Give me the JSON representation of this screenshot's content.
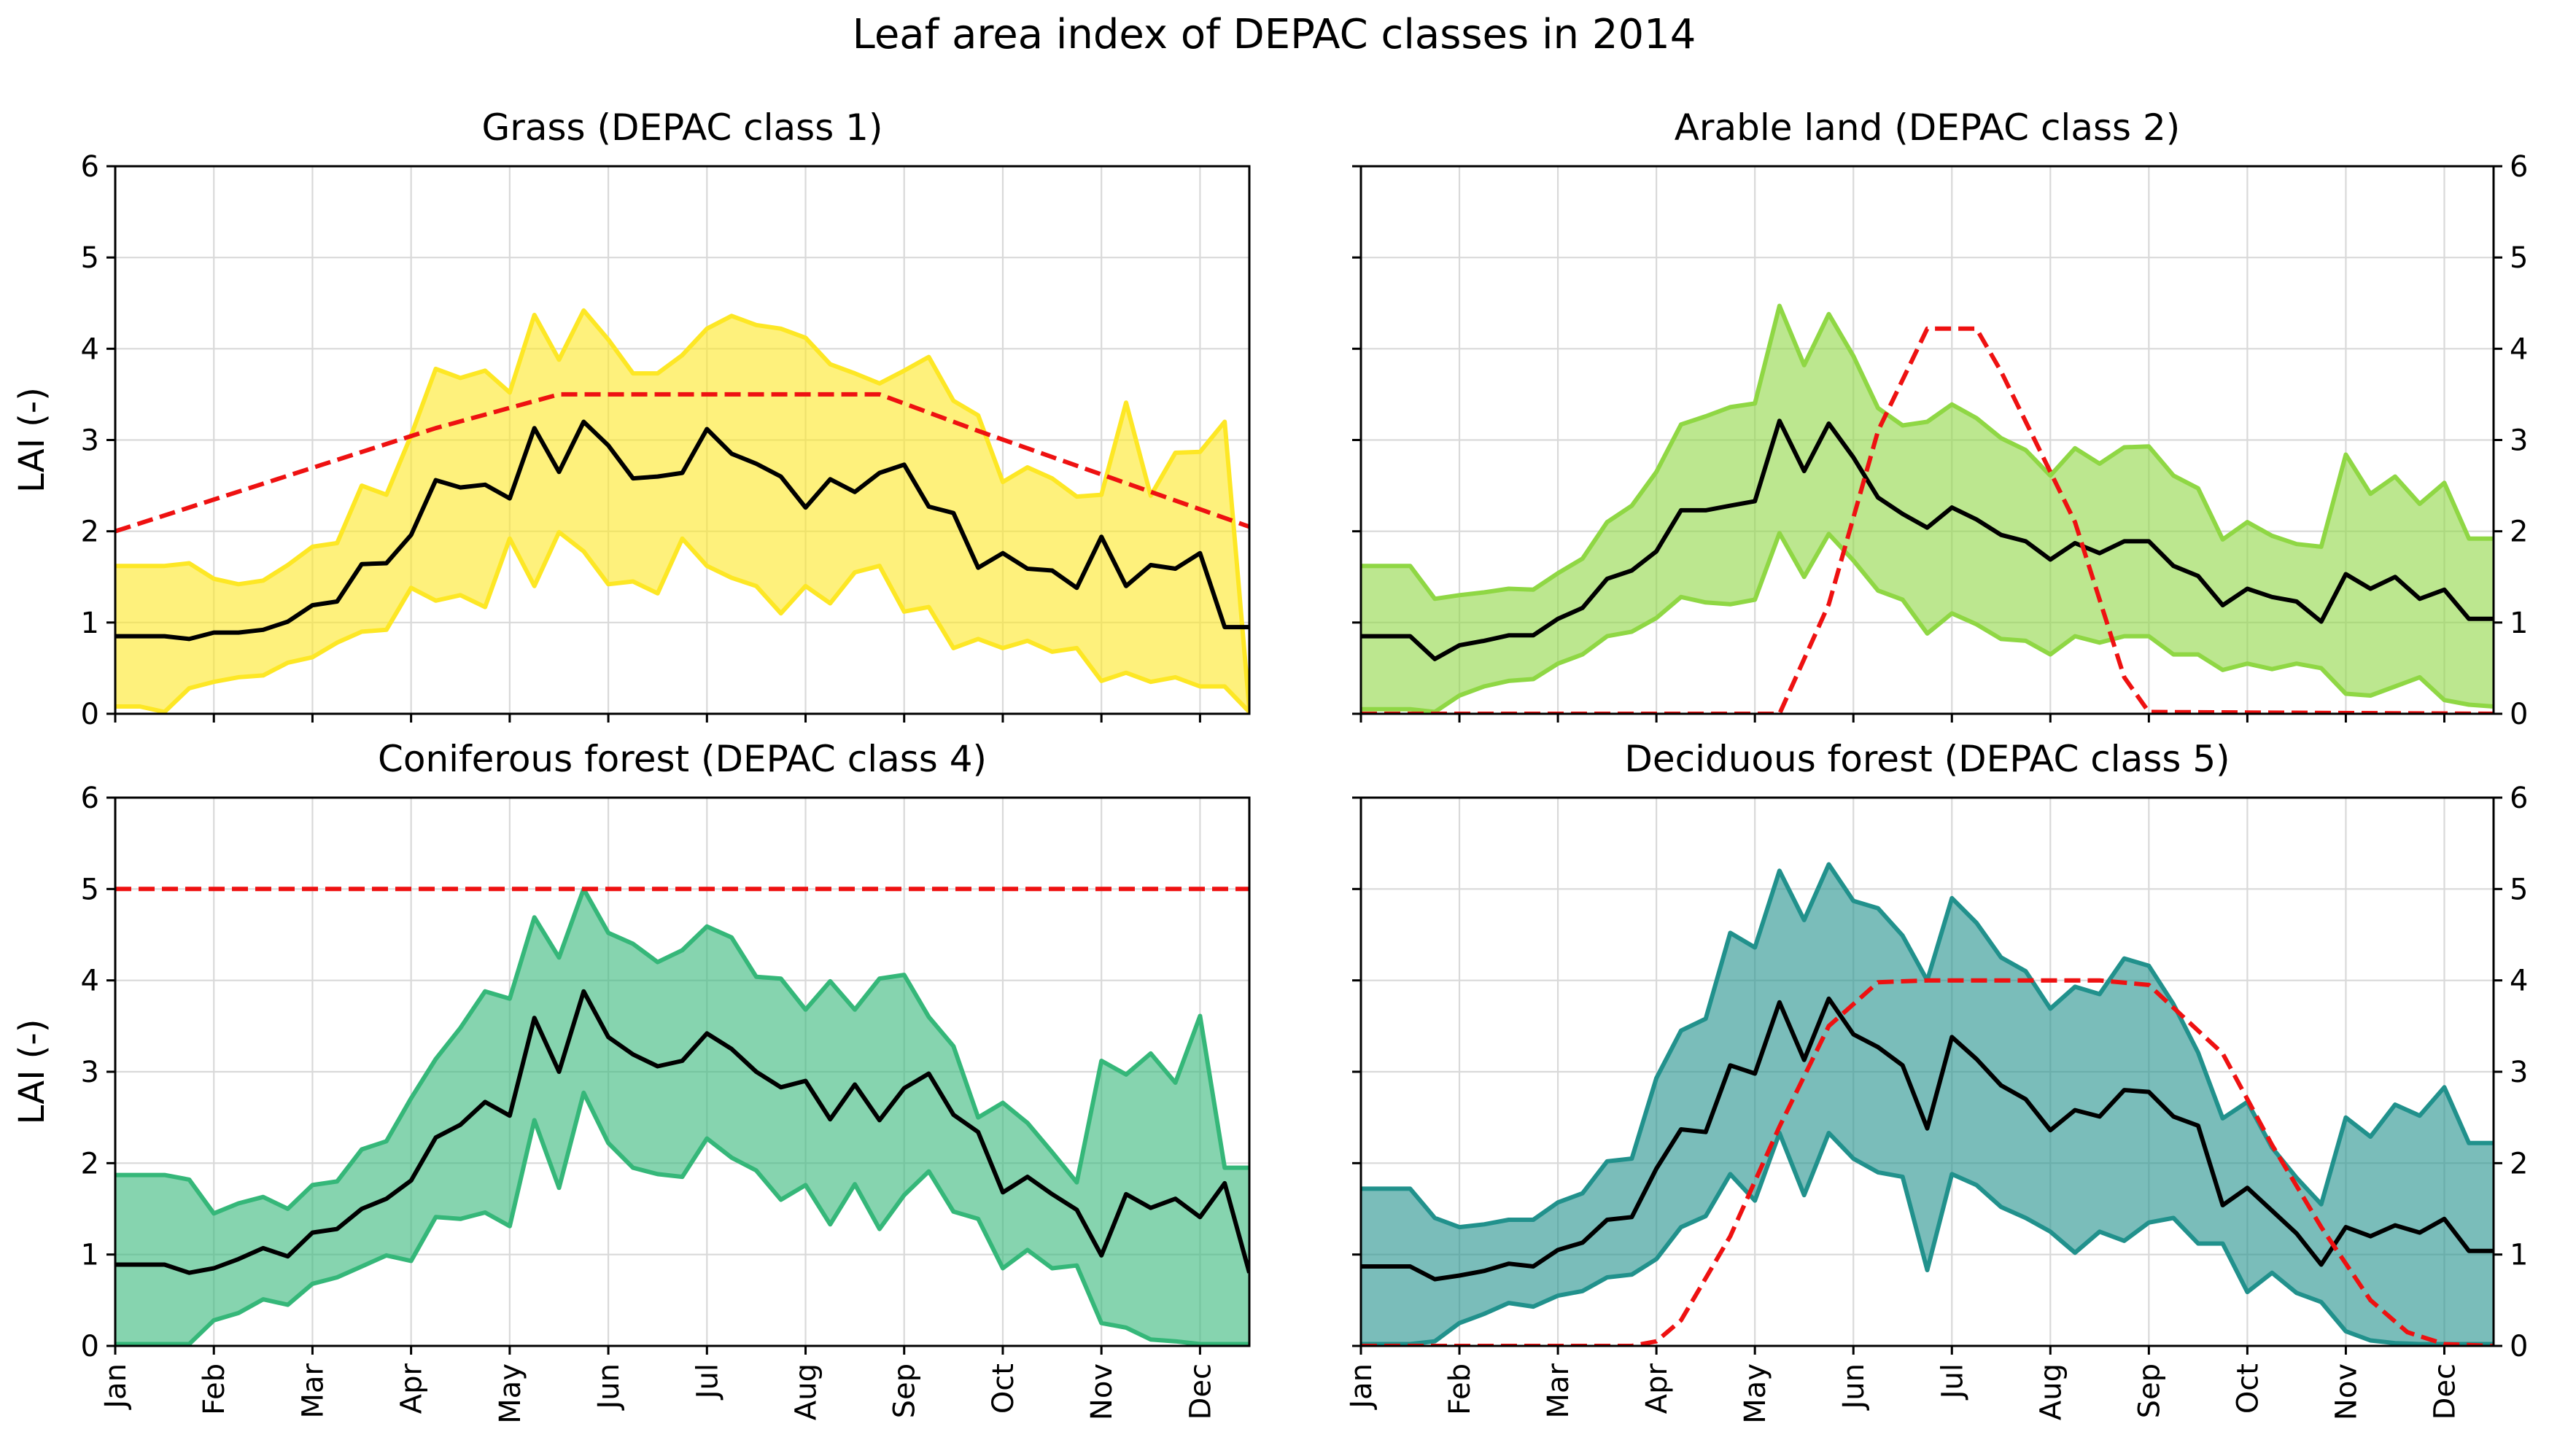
{
  "figure_title": "Leaf area index of DEPAC classes in 2014",
  "chart_data": [
    {
      "type": "line",
      "title": "Grass (DEPAC class 1)",
      "ylabel": "LAI (-)",
      "ylim": [
        0,
        6
      ],
      "yticks": [
        0,
        1,
        2,
        3,
        4,
        5,
        6
      ],
      "x_range": [
        1,
        47
      ],
      "month_ticks": [
        "Jan",
        "Feb",
        "Mar",
        "Apr",
        "May",
        "Jun",
        "Jul",
        "Aug",
        "Sep",
        "Oct",
        "Nov",
        "Dec"
      ],
      "month_tick_positions": [
        1,
        5,
        9,
        13,
        17,
        21,
        25,
        29,
        33,
        37,
        41,
        45
      ],
      "grid": true,
      "colors": {
        "fill": "#fde725",
        "edge": "#fde725",
        "mean": "#000000",
        "model": "#ee1111"
      },
      "fill_alpha": 0.6,
      "series": [
        {
          "name": "upper",
          "values": [
            1.62,
            1.62,
            1.62,
            1.65,
            1.48,
            1.42,
            1.46,
            1.63,
            1.83,
            1.87,
            2.5,
            2.4,
            3.05,
            3.78,
            3.68,
            3.76,
            3.52,
            4.37,
            3.88,
            4.42,
            4.1,
            3.73,
            3.73,
            3.93,
            4.22,
            4.36,
            4.26,
            4.22,
            4.12,
            3.83,
            3.73,
            3.62,
            3.76,
            3.91,
            3.43,
            3.27,
            2.54,
            2.7,
            2.58,
            2.38,
            2.4,
            3.41,
            2.39,
            2.86,
            2.87,
            3.2,
            0.05
          ]
        },
        {
          "name": "lower",
          "values": [
            0.08,
            0.08,
            0.02,
            0.28,
            0.35,
            0.4,
            0.42,
            0.56,
            0.62,
            0.78,
            0.9,
            0.92,
            1.38,
            1.24,
            1.3,
            1.17,
            1.92,
            1.4,
            1.99,
            1.78,
            1.42,
            1.45,
            1.32,
            1.92,
            1.62,
            1.49,
            1.4,
            1.1,
            1.4,
            1.21,
            1.55,
            1.62,
            1.12,
            1.17,
            0.72,
            0.82,
            0.72,
            0.8,
            0.68,
            0.72,
            0.36,
            0.45,
            0.35,
            0.4,
            0.3,
            0.3,
            0.02
          ]
        },
        {
          "name": "mean",
          "values": [
            0.85,
            0.85,
            0.85,
            0.82,
            0.89,
            0.89,
            0.92,
            1.01,
            1.19,
            1.23,
            1.64,
            1.65,
            1.96,
            2.56,
            2.48,
            2.51,
            2.36,
            3.13,
            2.65,
            3.2,
            2.94,
            2.58,
            2.6,
            2.64,
            3.12,
            2.85,
            2.74,
            2.6,
            2.26,
            2.57,
            2.43,
            2.64,
            2.73,
            2.27,
            2.2,
            1.6,
            1.76,
            1.59,
            1.57,
            1.38,
            1.94,
            1.4,
            1.63,
            1.59,
            1.76,
            0.95,
            0.95
          ]
        },
        {
          "name": "model",
          "dashed": true,
          "x": [
            1,
            14,
            19,
            32,
            36,
            47
          ],
          "values": [
            2.0,
            3.13,
            3.5,
            3.5,
            3.1,
            2.05
          ]
        }
      ]
    },
    {
      "type": "line",
      "title": "Arable land (DEPAC class 2)",
      "ylabel": "",
      "ylim": [
        0,
        6
      ],
      "yticks": [
        0,
        1,
        2,
        3,
        4,
        5,
        6
      ],
      "x_range": [
        1,
        47
      ],
      "month_ticks": [
        "Jan",
        "Feb",
        "Mar",
        "Apr",
        "May",
        "Jun",
        "Jul",
        "Aug",
        "Sep",
        "Oct",
        "Nov",
        "Dec"
      ],
      "month_tick_positions": [
        1,
        5,
        9,
        13,
        17,
        21,
        25,
        29,
        33,
        37,
        41,
        45
      ],
      "grid": true,
      "colors": {
        "fill": "#8fd744",
        "edge": "#8fd744",
        "mean": "#000000",
        "model": "#ee1111"
      },
      "fill_alpha": 0.6,
      "series": [
        {
          "name": "upper",
          "values": [
            1.62,
            1.62,
            1.62,
            1.26,
            1.3,
            1.33,
            1.37,
            1.36,
            1.54,
            1.7,
            2.1,
            2.28,
            2.65,
            3.17,
            3.26,
            3.36,
            3.4,
            4.47,
            3.82,
            4.38,
            3.92,
            3.35,
            3.16,
            3.2,
            3.39,
            3.24,
            3.02,
            2.89,
            2.61,
            2.91,
            2.74,
            2.92,
            2.93,
            2.61,
            2.47,
            1.91,
            2.1,
            1.95,
            1.86,
            1.83,
            2.84,
            2.41,
            2.6,
            2.3,
            2.53,
            1.92,
            1.92
          ]
        },
        {
          "name": "lower",
          "values": [
            0.05,
            0.05,
            0.05,
            0.02,
            0.2,
            0.3,
            0.36,
            0.38,
            0.55,
            0.65,
            0.85,
            0.9,
            1.05,
            1.28,
            1.22,
            1.2,
            1.25,
            1.98,
            1.5,
            1.97,
            1.68,
            1.35,
            1.25,
            0.88,
            1.1,
            0.98,
            0.82,
            0.8,
            0.65,
            0.85,
            0.78,
            0.85,
            0.85,
            0.65,
            0.65,
            0.48,
            0.55,
            0.49,
            0.55,
            0.5,
            0.22,
            0.2,
            0.3,
            0.4,
            0.15,
            0.1,
            0.08
          ]
        },
        {
          "name": "mean",
          "values": [
            0.85,
            0.85,
            0.85,
            0.6,
            0.75,
            0.8,
            0.86,
            0.86,
            1.04,
            1.16,
            1.48,
            1.57,
            1.78,
            2.23,
            2.23,
            2.28,
            2.33,
            3.21,
            2.66,
            3.18,
            2.81,
            2.37,
            2.19,
            2.04,
            2.26,
            2.13,
            1.96,
            1.89,
            1.69,
            1.87,
            1.76,
            1.89,
            1.89,
            1.62,
            1.51,
            1.19,
            1.37,
            1.28,
            1.23,
            1.01,
            1.53,
            1.37,
            1.5,
            1.26,
            1.36,
            1.04,
            1.04
          ]
        },
        {
          "name": "model",
          "dashed": true,
          "x": [
            1,
            18,
            20,
            22,
            24,
            26,
            27,
            30,
            32,
            33,
            47
          ],
          "values": [
            0.0,
            0.0,
            1.2,
            3.1,
            4.22,
            4.22,
            3.75,
            2.1,
            0.4,
            0.02,
            0.0
          ]
        }
      ]
    },
    {
      "type": "line",
      "title": "Coniferous forest (DEPAC class 4)",
      "ylabel": "LAI (-)",
      "ylim": [
        0,
        6
      ],
      "yticks": [
        0,
        1,
        2,
        3,
        4,
        5,
        6
      ],
      "x_range": [
        1,
        47
      ],
      "month_ticks": [
        "Jan",
        "Feb",
        "Mar",
        "Apr",
        "May",
        "Jun",
        "Jul",
        "Aug",
        "Sep",
        "Oct",
        "Nov",
        "Dec"
      ],
      "month_tick_positions": [
        1,
        5,
        9,
        13,
        17,
        21,
        25,
        29,
        33,
        37,
        41,
        45
      ],
      "grid": true,
      "colors": {
        "fill": "#35b779",
        "edge": "#35b779",
        "mean": "#000000",
        "model": "#ee1111"
      },
      "fill_alpha": 0.6,
      "series": [
        {
          "name": "upper",
          "values": [
            1.87,
            1.87,
            1.87,
            1.82,
            1.45,
            1.56,
            1.63,
            1.5,
            1.76,
            1.8,
            2.15,
            2.24,
            2.71,
            3.14,
            3.48,
            3.88,
            3.8,
            4.69,
            4.25,
            5.0,
            4.52,
            4.4,
            4.2,
            4.33,
            4.59,
            4.47,
            4.04,
            4.02,
            3.68,
            3.99,
            3.68,
            4.02,
            4.06,
            3.6,
            3.28,
            2.5,
            2.66,
            2.44,
            2.12,
            1.79,
            3.12,
            2.97,
            3.2,
            2.88,
            3.61,
            1.95,
            1.95
          ]
        },
        {
          "name": "lower",
          "values": [
            0.02,
            0.02,
            0.02,
            0.02,
            0.28,
            0.36,
            0.51,
            0.45,
            0.68,
            0.75,
            0.87,
            0.99,
            0.93,
            1.41,
            1.39,
            1.46,
            1.31,
            2.47,
            1.73,
            2.77,
            2.22,
            1.95,
            1.88,
            1.85,
            2.27,
            2.06,
            1.92,
            1.6,
            1.76,
            1.33,
            1.77,
            1.28,
            1.65,
            1.91,
            1.47,
            1.39,
            0.85,
            1.05,
            0.85,
            0.88,
            0.25,
            0.2,
            0.07,
            0.05,
            0.02,
            0.02,
            0.02
          ]
        },
        {
          "name": "mean",
          "values": [
            0.89,
            0.89,
            0.89,
            0.8,
            0.85,
            0.95,
            1.07,
            0.98,
            1.24,
            1.28,
            1.5,
            1.61,
            1.81,
            2.28,
            2.42,
            2.67,
            2.52,
            3.59,
            3.0,
            3.88,
            3.38,
            3.19,
            3.06,
            3.12,
            3.42,
            3.25,
            3.0,
            2.83,
            2.9,
            2.48,
            2.86,
            2.47,
            2.82,
            2.98,
            2.53,
            2.34,
            1.68,
            1.85,
            1.66,
            1.49,
            0.99,
            1.66,
            1.51,
            1.61,
            1.41,
            1.78,
            0.8
          ]
        },
        {
          "name": "model",
          "dashed": true,
          "x": [
            1,
            47
          ],
          "values": [
            5.0,
            5.0
          ]
        }
      ]
    },
    {
      "type": "line",
      "title": "Deciduous forest (DEPAC class 5)",
      "ylabel": "",
      "ylim": [
        0,
        6
      ],
      "yticks": [
        0,
        1,
        2,
        3,
        4,
        5,
        6
      ],
      "x_range": [
        1,
        47
      ],
      "month_ticks": [
        "Jan",
        "Feb",
        "Mar",
        "Apr",
        "May",
        "Jun",
        "Jul",
        "Aug",
        "Sep",
        "Oct",
        "Nov",
        "Dec"
      ],
      "month_tick_positions": [
        1,
        5,
        9,
        13,
        17,
        21,
        25,
        29,
        33,
        37,
        41,
        45
      ],
      "grid": true,
      "colors": {
        "fill": "#21918c",
        "edge": "#21918c",
        "mean": "#000000",
        "model": "#ee1111"
      },
      "fill_alpha": 0.6,
      "series": [
        {
          "name": "upper",
          "values": [
            1.72,
            1.72,
            1.72,
            1.4,
            1.3,
            1.33,
            1.38,
            1.38,
            1.57,
            1.67,
            2.02,
            2.05,
            2.93,
            3.45,
            3.58,
            4.52,
            4.36,
            5.2,
            4.66,
            5.27,
            4.87,
            4.79,
            4.49,
            4.0,
            4.9,
            4.63,
            4.25,
            4.1,
            3.69,
            3.93,
            3.85,
            4.24,
            4.16,
            3.74,
            3.21,
            2.49,
            2.67,
            2.17,
            1.84,
            1.55,
            2.5,
            2.29,
            2.64,
            2.52,
            2.83,
            2.22,
            2.22
          ]
        },
        {
          "name": "lower",
          "values": [
            0.02,
            0.02,
            0.02,
            0.05,
            0.25,
            0.35,
            0.47,
            0.43,
            0.55,
            0.6,
            0.75,
            0.78,
            0.95,
            1.3,
            1.42,
            1.88,
            1.59,
            2.33,
            1.65,
            2.33,
            2.05,
            1.9,
            1.85,
            0.83,
            1.88,
            1.76,
            1.52,
            1.4,
            1.25,
            1.02,
            1.25,
            1.15,
            1.35,
            1.4,
            1.12,
            1.12,
            0.59,
            0.8,
            0.58,
            0.48,
            0.16,
            0.06,
            0.03,
            0.02,
            0.02,
            0.02,
            0.02
          ]
        },
        {
          "name": "mean",
          "values": [
            0.87,
            0.87,
            0.87,
            0.73,
            0.77,
            0.82,
            0.9,
            0.87,
            1.05,
            1.13,
            1.38,
            1.41,
            1.94,
            2.37,
            2.34,
            3.07,
            2.98,
            3.76,
            3.13,
            3.8,
            3.41,
            3.27,
            3.07,
            2.38,
            3.38,
            3.14,
            2.85,
            2.7,
            2.36,
            2.58,
            2.51,
            2.8,
            2.78,
            2.51,
            2.41,
            1.54,
            1.73,
            1.48,
            1.23,
            0.89,
            1.3,
            1.2,
            1.32,
            1.24,
            1.39,
            1.04,
            1.04
          ]
        },
        {
          "name": "model",
          "dashed": true,
          "x": [
            1,
            12,
            13,
            14,
            16,
            18,
            20,
            22,
            24,
            28,
            31,
            33,
            36,
            38,
            40,
            42,
            43.5,
            45,
            47
          ],
          "values": [
            0.0,
            0.0,
            0.05,
            0.28,
            1.2,
            2.4,
            3.5,
            3.98,
            4.0,
            4.0,
            4.0,
            3.95,
            3.2,
            2.2,
            1.3,
            0.5,
            0.15,
            0.02,
            0.0
          ]
        }
      ]
    }
  ]
}
